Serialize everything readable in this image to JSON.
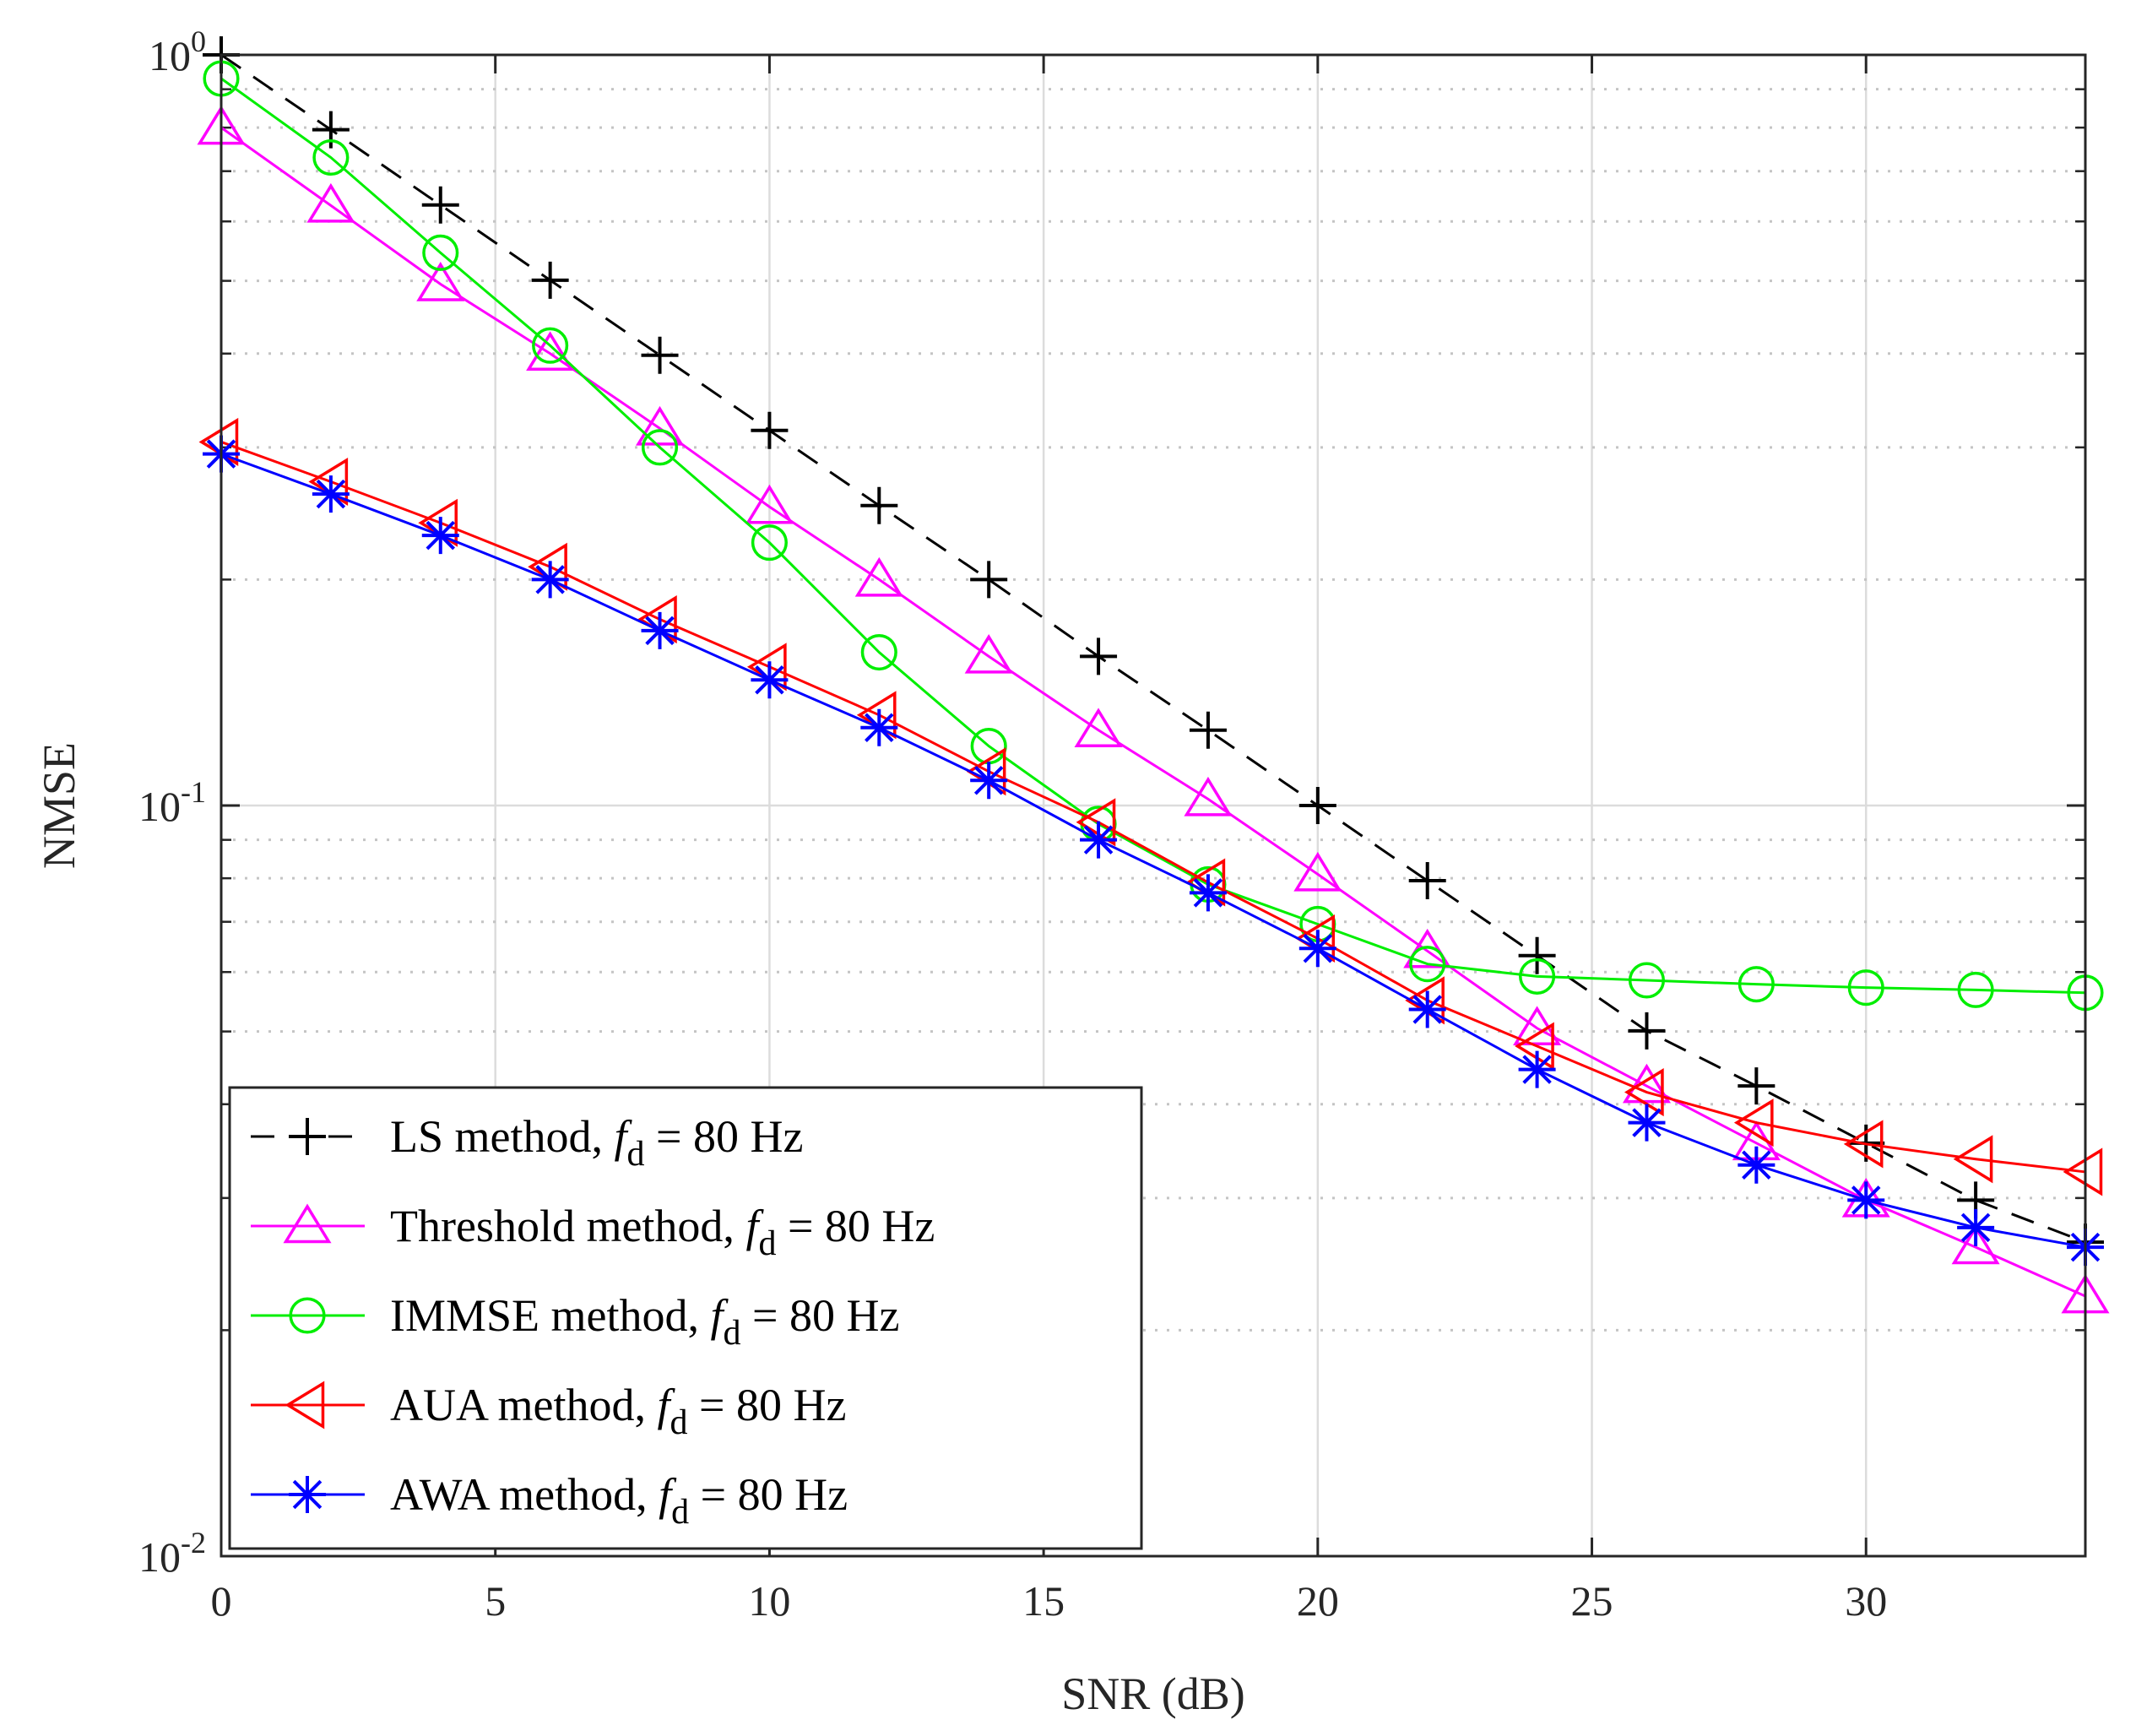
{
  "chart_data": {
    "type": "line",
    "title": "",
    "xlabel": "SNR (dB)",
    "ylabel": "NMSE",
    "yscale": "log",
    "xlim": [
      0,
      34
    ],
    "ylim": [
      0.01,
      1
    ],
    "x_ticks": [
      {
        "value": 0,
        "label": "0"
      },
      {
        "value": 5,
        "label": "5"
      },
      {
        "value": 10,
        "label": "10"
      },
      {
        "value": 15,
        "label": "15"
      },
      {
        "value": 20,
        "label": "20"
      },
      {
        "value": 25,
        "label": "25"
      },
      {
        "value": 30,
        "label": "30"
      }
    ],
    "y_ticks": [
      {
        "value": 1,
        "base": "10",
        "exp": "0"
      },
      {
        "value": 0.1,
        "base": "10",
        "exp": "-1"
      },
      {
        "value": 0.01,
        "base": "10",
        "exp": "-2"
      }
    ],
    "grid": true,
    "legend_position": "bottom-left",
    "x": [
      0,
      2,
      4,
      6,
      8,
      10,
      12,
      14,
      16,
      18,
      20,
      22,
      24,
      26,
      28,
      30,
      32,
      34
    ],
    "series": [
      {
        "name": "LS method",
        "legend_prefix": "LS method, ",
        "legend_var": "f",
        "legend_sub": "d",
        "legend_suffix": " = 80 Hz",
        "color": "#000000",
        "dash": "28,18",
        "marker": "plus",
        "values": [
          1.0,
          0.795,
          0.631,
          0.501,
          0.398,
          0.316,
          0.251,
          0.2,
          0.158,
          0.126,
          0.1,
          0.0794,
          0.0631,
          0.0501,
          0.0423,
          0.0355,
          0.0298,
          0.0262
        ]
      },
      {
        "name": "Threshold method",
        "legend_prefix": "Threshold method, ",
        "legend_var": "f",
        "legend_sub": "d",
        "legend_suffix": " = 80 Hz",
        "color": "#ff00ff",
        "dash": "",
        "marker": "triangle-up",
        "values": [
          0.8,
          0.63,
          0.495,
          0.4,
          0.318,
          0.25,
          0.2,
          0.158,
          0.126,
          0.102,
          0.081,
          0.064,
          0.0505,
          0.0423,
          0.0355,
          0.0298,
          0.0258,
          0.0222
        ]
      },
      {
        "name": "IMMSE method",
        "legend_prefix": "IMMSE method, ",
        "legend_var": "f",
        "legend_sub": "d",
        "legend_suffix": " = 80 Hz",
        "color": "#00ee00",
        "dash": "",
        "marker": "circle",
        "values": [
          0.93,
          0.73,
          0.545,
          0.41,
          0.3,
          0.224,
          0.16,
          0.12,
          0.0945,
          0.0785,
          0.0695,
          0.0615,
          0.0592,
          0.0585,
          0.0578,
          0.0572,
          0.0568,
          0.0563
        ]
      },
      {
        "name": "AUA method",
        "legend_prefix": "AUA method, ",
        "legend_var": "f",
        "legend_sub": "d",
        "legend_suffix": " = 80 Hz",
        "color": "#ff0000",
        "dash": "",
        "marker": "triangle-left",
        "values": [
          0.305,
          0.27,
          0.238,
          0.208,
          0.177,
          0.153,
          0.132,
          0.111,
          0.095,
          0.079,
          0.0665,
          0.055,
          0.0478,
          0.0415,
          0.0378,
          0.0354,
          0.0338,
          0.0325
        ]
      },
      {
        "name": "AWA method",
        "legend_prefix": "AWA method, ",
        "legend_var": "f",
        "legend_sub": "d",
        "legend_suffix": " = 80 Hz",
        "color": "#0000ff",
        "dash": "",
        "marker": "asterisk",
        "values": [
          0.294,
          0.26,
          0.229,
          0.2,
          0.171,
          0.147,
          0.127,
          0.108,
          0.09,
          0.0765,
          0.0645,
          0.0535,
          0.0445,
          0.0378,
          0.0332,
          0.0298,
          0.0274,
          0.0258
        ]
      }
    ]
  }
}
